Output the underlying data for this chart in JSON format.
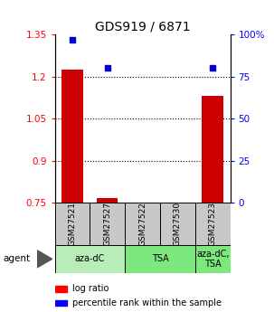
{
  "title": "GDS919 / 6871",
  "samples": [
    "GSM27521",
    "GSM27527",
    "GSM27522",
    "GSM27530",
    "GSM27523"
  ],
  "log_ratios": [
    1.225,
    0.768,
    0.752,
    0.752,
    1.13
  ],
  "percentile_ranks": [
    97,
    80,
    0,
    0,
    80
  ],
  "show_percentile": [
    true,
    true,
    false,
    false,
    true
  ],
  "ylim_left": [
    0.75,
    1.35
  ],
  "ylim_right": [
    0,
    100
  ],
  "yticks_left": [
    0.75,
    0.9,
    1.05,
    1.2,
    1.35
  ],
  "ytick_labels_left": [
    "0.75",
    "0.9",
    "1.05",
    "1.2",
    "1.35"
  ],
  "yticks_right": [
    0,
    25,
    50,
    75,
    100
  ],
  "ytick_labels_right": [
    "0",
    "25",
    "50",
    "75",
    "100%"
  ],
  "group_defs": [
    {
      "label": "aza-dC",
      "start": 0,
      "end": 1,
      "color": "#b8edb8"
    },
    {
      "label": "TSA",
      "start": 2,
      "end": 3,
      "color": "#7de87d"
    },
    {
      "label": "aza-dC,\nTSA",
      "start": 4,
      "end": 4,
      "color": "#7de87d"
    }
  ],
  "bar_color": "#cc0000",
  "point_color": "#0000cc",
  "bar_width": 0.6,
  "legend_red_label": "log ratio",
  "legend_blue_label": "percentile rank within the sample",
  "bar_bottom": 0.75,
  "sample_box_color": "#c8c8c8"
}
